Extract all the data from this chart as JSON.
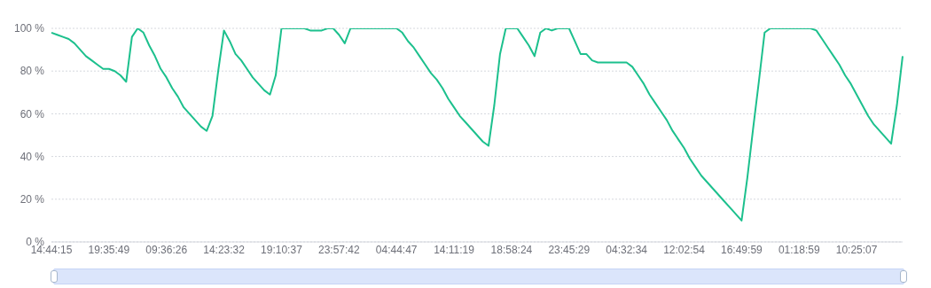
{
  "chart_data": {
    "type": "line",
    "categories": [
      "14:44:15",
      null,
      null,
      null,
      null,
      null,
      null,
      null,
      null,
      null,
      "19:35:49",
      null,
      null,
      null,
      null,
      null,
      null,
      null,
      null,
      null,
      "09:36:26",
      null,
      null,
      null,
      null,
      null,
      null,
      null,
      null,
      null,
      "14:23:32",
      null,
      null,
      null,
      null,
      null,
      null,
      null,
      null,
      null,
      "19:10:37",
      null,
      null,
      null,
      null,
      null,
      null,
      null,
      null,
      null,
      "23:57:42",
      null,
      null,
      null,
      null,
      null,
      null,
      null,
      null,
      null,
      "04:44:47",
      null,
      null,
      null,
      null,
      null,
      null,
      null,
      null,
      null,
      "14:11:19",
      null,
      null,
      null,
      null,
      null,
      null,
      null,
      null,
      null,
      "18:58:24",
      null,
      null,
      null,
      null,
      null,
      null,
      null,
      null,
      null,
      "23:45:29",
      null,
      null,
      null,
      null,
      null,
      null,
      null,
      null,
      null,
      "04:32:34",
      null,
      null,
      null,
      null,
      null,
      null,
      null,
      null,
      null,
      "12:02:54",
      null,
      null,
      null,
      null,
      null,
      null,
      null,
      null,
      null,
      "16:49:59",
      null,
      null,
      null,
      null,
      null,
      null,
      null,
      null,
      null,
      "01:18:59",
      null,
      null,
      null,
      null,
      null,
      null,
      null,
      null,
      null,
      "10:25:07",
      null,
      null,
      null,
      null,
      null,
      null,
      null,
      null
    ],
    "series": [
      {
        "color": "#1cc08d",
        "values": [
          98,
          97,
          96,
          95,
          93,
          90,
          87,
          85,
          83,
          81,
          81,
          80,
          78,
          75,
          96,
          100,
          98,
          92,
          87,
          81,
          77,
          72,
          68,
          63,
          60,
          57,
          54,
          52,
          59,
          80,
          99,
          94,
          88,
          85,
          81,
          77,
          74,
          71,
          69,
          78,
          100,
          100,
          100,
          100,
          100,
          99,
          99,
          99,
          100,
          100,
          97,
          93,
          100,
          100,
          100,
          100,
          100,
          100,
          100,
          100,
          100,
          98,
          94,
          91,
          87,
          83,
          79,
          76,
          72,
          67,
          63,
          59,
          56,
          53,
          50,
          47,
          45,
          64,
          88,
          100,
          100,
          100,
          96,
          92,
          87,
          98,
          100,
          99,
          100,
          100,
          100,
          94,
          88,
          88,
          85,
          84,
          84,
          84,
          84,
          84,
          84,
          82,
          78,
          74,
          69,
          65,
          61,
          57,
          52,
          48,
          44,
          39,
          35,
          31,
          28,
          25,
          22,
          19,
          16,
          13,
          10,
          30,
          53,
          75,
          98,
          100,
          100,
          100,
          100,
          100,
          100,
          100,
          100,
          99,
          95,
          91,
          87,
          83,
          78,
          74,
          69,
          64,
          59,
          55,
          52,
          49,
          46,
          64,
          87
        ]
      }
    ],
    "ylim": [
      0,
      100
    ],
    "yticks": [
      {
        "value": 0,
        "label": "0 %"
      },
      {
        "value": 20,
        "label": "20 %"
      },
      {
        "value": 40,
        "label": "40 %"
      },
      {
        "value": 60,
        "label": "60 %"
      },
      {
        "value": 80,
        "label": "80 %"
      },
      {
        "value": 100,
        "label": "100 %"
      }
    ],
    "grid": "y",
    "marker": "none",
    "line_style": "solid"
  }
}
